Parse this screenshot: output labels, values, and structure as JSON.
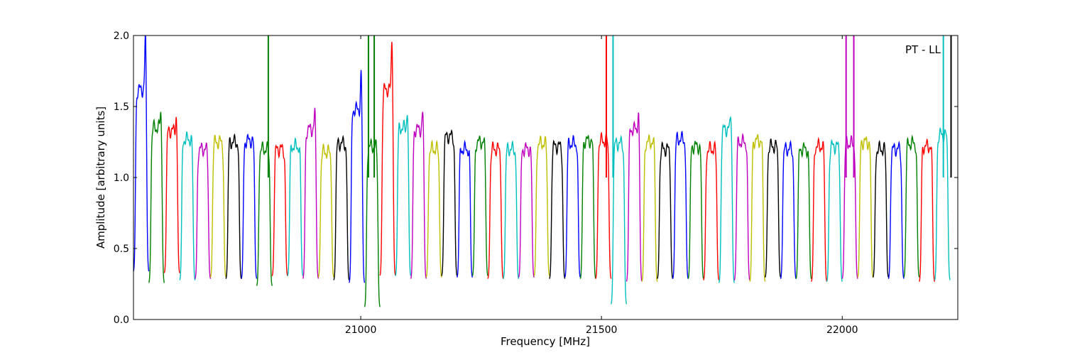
{
  "chart_data": {
    "type": "line",
    "annotation": "PT - LL",
    "xlabel": "Frequency [MHz]",
    "ylabel": "Amplitude [arbitrary units]",
    "xlim": [
      20528,
      22240
    ],
    "ylim": [
      0.0,
      2.0
    ],
    "xticks": [
      21000,
      21500,
      22000
    ],
    "yticks": [
      0.0,
      0.5,
      1.0,
      1.5,
      2.0
    ],
    "xtick_labels": [
      "21000",
      "21500",
      "22000"
    ],
    "ytick_labels": [
      "0.0",
      "0.5",
      "1.0",
      "1.5",
      "2.0"
    ],
    "grid": false,
    "legend": "none",
    "channel_width_mhz": 32,
    "color_cycle": [
      "#0000ff",
      "#008000",
      "#ff0000",
      "#00bfbf",
      "#bf00bf",
      "#bfbf00",
      "#000000"
    ],
    "channel_starts_mhz": [
      20528,
      20560,
      20592,
      20624,
      20656,
      20688,
      20720,
      20752,
      20784,
      20816,
      20848,
      20880,
      20912,
      20944,
      20976,
      21008,
      21040,
      21072,
      21104,
      21136,
      21168,
      21200,
      21232,
      21264,
      21296,
      21328,
      21360,
      21392,
      21424,
      21456,
      21488,
      21520,
      21552,
      21584,
      21616,
      21648,
      21680,
      21712,
      21744,
      21776,
      21808,
      21840,
      21872,
      21904,
      21936,
      21968,
      22000,
      22032,
      22064,
      22096,
      22128,
      22160,
      22192
    ],
    "channel_plateau_levels": [
      1.62,
      1.35,
      1.33,
      1.27,
      1.2,
      1.25,
      1.25,
      1.26,
      1.2,
      1.2,
      1.22,
      1.34,
      1.18,
      1.24,
      1.48,
      1.22,
      1.62,
      1.35,
      1.34,
      1.2,
      1.29,
      1.2,
      1.25,
      1.2,
      1.2,
      1.2,
      1.24,
      1.22,
      1.24,
      1.26,
      1.26,
      1.24,
      1.34,
      1.25,
      1.2,
      1.27,
      1.22,
      1.2,
      1.34,
      1.25,
      1.26,
      1.22,
      1.2,
      1.2,
      1.22,
      1.22,
      1.24,
      1.25,
      1.2,
      1.2,
      1.24,
      1.22,
      1.3
    ],
    "channel_trough_levels": [
      0.33,
      0.25,
      0.32,
      0.27,
      0.28,
      0.29,
      0.28,
      0.28,
      0.23,
      0.3,
      0.3,
      0.28,
      0.29,
      0.27,
      0.25,
      0.08,
      0.3,
      0.3,
      0.28,
      0.29,
      0.3,
      0.29,
      0.3,
      0.28,
      0.28,
      0.29,
      0.3,
      0.28,
      0.29,
      0.28,
      0.28,
      0.1,
      0.26,
      0.26,
      0.28,
      0.28,
      0.28,
      0.27,
      0.25,
      0.27,
      0.26,
      0.29,
      0.28,
      0.28,
      0.26,
      0.26,
      0.28,
      0.29,
      0.29,
      0.28,
      0.29,
      0.26,
      0.27
    ],
    "spikes": [
      {
        "x": 20808,
        "y": 2.0
      },
      {
        "x": 21016,
        "y": 2.0
      },
      {
        "x": 21028,
        "y": 2.0
      },
      {
        "x": 21510,
        "y": 2.0
      },
      {
        "x": 21524,
        "y": 2.0
      },
      {
        "x": 22008,
        "y": 2.0
      },
      {
        "x": 22024,
        "y": 2.0
      },
      {
        "x": 22210,
        "y": 2.0
      },
      {
        "x": 22226,
        "y": 2.0
      }
    ]
  }
}
